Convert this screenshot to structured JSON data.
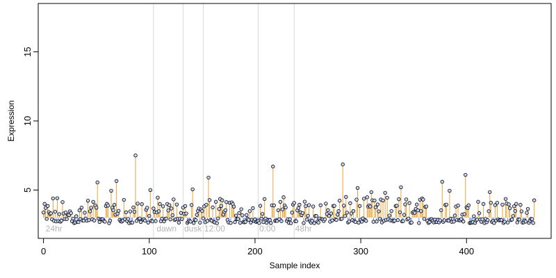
{
  "chart_data": {
    "type": "scatter",
    "xlabel": "Sample index",
    "ylabel": "Expression",
    "xlim": [
      -5,
      480
    ],
    "ylim": [
      1.5,
      18.5
    ],
    "xticks": [
      0,
      100,
      200,
      300,
      400
    ],
    "yticks": [
      5,
      10,
      15
    ],
    "baseline": 3.0,
    "stem_color_above": "#e8a33a",
    "stem_color_below": "#6c8ed6",
    "point_fill": "#c9d3f2",
    "vline_color": "#d9d9d9",
    "vlines": [
      104,
      132,
      151,
      203,
      237
    ],
    "region_labels": [
      {
        "text": "24hr",
        "x": 2
      },
      {
        "text": "dawn",
        "x": 107
      },
      {
        "text": "dusk",
        "x": 133
      },
      {
        "text": "12:00",
        "x": 152
      },
      {
        "text": "0:00",
        "x": 204
      },
      {
        "text": "48hr",
        "x": 238
      }
    ],
    "region_label_color": "#b5b5b5",
    "region_label_y": 2.0,
    "n_points": 465,
    "highlights": [
      {
        "x": 87,
        "y": 7.5
      },
      {
        "x": 217,
        "y": 6.7
      },
      {
        "x": 283,
        "y": 6.85
      },
      {
        "x": 399,
        "y": 6.1
      },
      {
        "x": 156,
        "y": 5.9
      },
      {
        "x": 51,
        "y": 5.55
      },
      {
        "x": 69,
        "y": 5.65
      },
      {
        "x": 377,
        "y": 5.6
      },
      {
        "x": 297,
        "y": 5.15
      },
      {
        "x": 338,
        "y": 5.2
      },
      {
        "x": 141,
        "y": 5.05
      },
      {
        "x": 101,
        "y": 5.0
      },
      {
        "x": 64,
        "y": 4.95
      },
      {
        "x": 422,
        "y": 4.85
      },
      {
        "x": 384,
        "y": 4.95
      },
      {
        "x": 310,
        "y": 4.85
      },
      {
        "x": 323,
        "y": 4.8
      }
    ]
  }
}
